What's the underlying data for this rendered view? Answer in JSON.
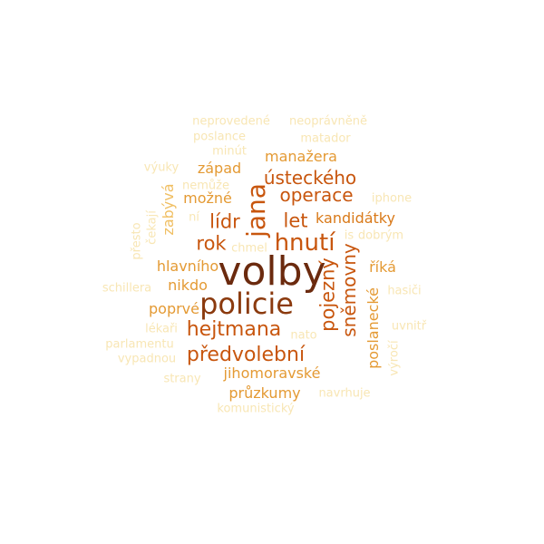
{
  "colors": {
    "darkest": "#6b2a0e",
    "dark": "#8b3a0e",
    "strong": "#c8560e",
    "medium": "#d97a1a",
    "warm": "#e49a34",
    "light": "#f0bf63",
    "pale": "#f5d98e",
    "faint": "#f8e6b4"
  },
  "words": [
    {
      "text": "volby",
      "shade": "darkest",
      "rotate": 0
    },
    {
      "text": "policie",
      "shade": "dark",
      "rotate": 0
    },
    {
      "text": "jana",
      "shade": "strong",
      "rotate": -90
    },
    {
      "text": "hnutí",
      "shade": "strong",
      "rotate": 0
    },
    {
      "text": "hejtmana",
      "shade": "strong",
      "rotate": 0
    },
    {
      "text": "předvolební",
      "shade": "strong",
      "rotate": 0
    },
    {
      "text": "pojezný",
      "shade": "strong",
      "rotate": -90
    },
    {
      "text": "sněmovny",
      "shade": "strong",
      "rotate": -90
    },
    {
      "text": "ústeckého",
      "shade": "strong",
      "rotate": 0
    },
    {
      "text": "operace",
      "shade": "strong",
      "rotate": 0
    },
    {
      "text": "let",
      "shade": "strong",
      "rotate": 0
    },
    {
      "text": "lídr",
      "shade": "strong",
      "rotate": 0
    },
    {
      "text": "rok",
      "shade": "strong",
      "rotate": 0
    },
    {
      "text": "kandidátky",
      "shade": "medium",
      "rotate": 0
    },
    {
      "text": "manažera",
      "shade": "warm",
      "rotate": 0
    },
    {
      "text": "západ",
      "shade": "warm",
      "rotate": 0
    },
    {
      "text": "možné",
      "shade": "warm",
      "rotate": 0
    },
    {
      "text": "hlavního",
      "shade": "warm",
      "rotate": 0
    },
    {
      "text": "nikdo",
      "shade": "warm",
      "rotate": 0
    },
    {
      "text": "poprvé",
      "shade": "warm",
      "rotate": 0
    },
    {
      "text": "říká",
      "shade": "warm",
      "rotate": 0
    },
    {
      "text": "poslanecké",
      "shade": "warm",
      "rotate": -90
    },
    {
      "text": "jihomoravské",
      "shade": "warm",
      "rotate": 0
    },
    {
      "text": "průzkumy",
      "shade": "warm",
      "rotate": 0
    },
    {
      "text": "zabývá",
      "shade": "light",
      "rotate": -90
    },
    {
      "text": "neprovedené",
      "shade": "faint",
      "rotate": 0
    },
    {
      "text": "neoprávněně",
      "shade": "faint",
      "rotate": 0
    },
    {
      "text": "poslance",
      "shade": "faint",
      "rotate": 0
    },
    {
      "text": "matador",
      "shade": "faint",
      "rotate": 0
    },
    {
      "text": "minút",
      "shade": "faint",
      "rotate": 0
    },
    {
      "text": "výuky",
      "shade": "faint",
      "rotate": 0
    },
    {
      "text": "nemůže",
      "shade": "faint",
      "rotate": 0
    },
    {
      "text": "iphone",
      "shade": "faint",
      "rotate": 0
    },
    {
      "text": "ní",
      "shade": "faint",
      "rotate": 0
    },
    {
      "text": "čekají",
      "shade": "faint",
      "rotate": -90
    },
    {
      "text": "přesto",
      "shade": "faint",
      "rotate": -90
    },
    {
      "text": "chmel",
      "shade": "faint",
      "rotate": 0
    },
    {
      "text": "is",
      "shade": "faint",
      "rotate": 0
    },
    {
      "text": "dobrým",
      "shade": "faint",
      "rotate": 0
    },
    {
      "text": "schillera",
      "shade": "faint",
      "rotate": 0
    },
    {
      "text": "hasiči",
      "shade": "faint",
      "rotate": 0
    },
    {
      "text": "lékaři",
      "shade": "faint",
      "rotate": 0
    },
    {
      "text": "nato",
      "shade": "faint",
      "rotate": 0
    },
    {
      "text": "uvnitř",
      "shade": "faint",
      "rotate": 0
    },
    {
      "text": "parlamentu",
      "shade": "faint",
      "rotate": 0
    },
    {
      "text": "vypadnou",
      "shade": "faint",
      "rotate": 0
    },
    {
      "text": "výročí",
      "shade": "faint",
      "rotate": -90
    },
    {
      "text": "strany",
      "shade": "faint",
      "rotate": 0
    },
    {
      "text": "navrhuje",
      "shade": "faint",
      "rotate": 0
    },
    {
      "text": "komunistický",
      "shade": "faint",
      "rotate": 0
    }
  ]
}
